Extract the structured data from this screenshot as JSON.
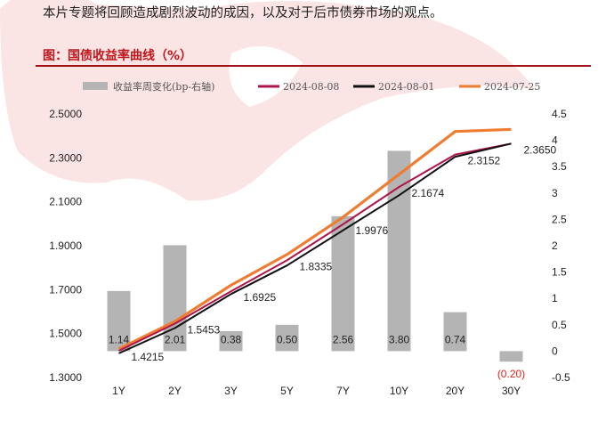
{
  "header": {
    "intro_text": "本片专题将回顾造成剧烈波动的成因，以及对于后市债券市场的观点。",
    "figure_title": "图：国债收益率曲线（%）"
  },
  "colors": {
    "bars": "#b4b4b4",
    "s_0808": "#b0154a",
    "s_0801": "#111111",
    "s_0725": "#ef7d31",
    "title": "#c0161c",
    "negative_label": "#e0201c",
    "watermark": "#fbe4e4"
  },
  "chart_data": {
    "type": "bar+line",
    "categories": [
      "1Y",
      "2Y",
      "3Y",
      "5Y",
      "7Y",
      "10Y",
      "20Y",
      "30Y"
    ],
    "left_axis": {
      "min": 1.3,
      "max": 2.5,
      "step": 0.2,
      "ticks": [
        "1.3000",
        "1.5000",
        "1.7000",
        "1.9000",
        "2.1000",
        "2.3000",
        "2.5000"
      ]
    },
    "right_axis": {
      "min": -0.5,
      "max": 4.5,
      "step": 0.5,
      "ticks": [
        "-0.5",
        "0",
        "0.5",
        "1",
        "1.5",
        "2",
        "2.5",
        "3",
        "3.5",
        "4",
        "4.5"
      ]
    },
    "bars": {
      "name": "收益率周变化(bp-右轴)",
      "values": [
        1.14,
        2.01,
        0.38,
        0.5,
        2.56,
        3.8,
        0.74,
        -0.2
      ],
      "labels": [
        "1.14",
        "2.01",
        "0.38",
        "0.50",
        "2.56",
        "3.80",
        "0.74",
        "(0.20)"
      ]
    },
    "series": [
      {
        "name": "2024-08-08",
        "values": [
          1.4215,
          1.5453,
          1.6925,
          1.8335,
          1.9976,
          2.1674,
          2.3152,
          2.365
        ]
      },
      {
        "name": "2024-08-01",
        "values": [
          1.41,
          1.525,
          1.68,
          1.81,
          1.97,
          2.13,
          2.305,
          2.365
        ]
      },
      {
        "name": "2024-07-25",
        "values": [
          1.43,
          1.555,
          1.72,
          1.86,
          2.03,
          2.225,
          2.42,
          2.43
        ]
      }
    ],
    "point_labels": [
      "1.4215",
      "1.5453",
      "1.6925",
      "1.8335",
      "1.9976",
      "2.1674",
      "2.3152",
      "2.3650"
    ],
    "legend_position": "top",
    "grid": false
  }
}
